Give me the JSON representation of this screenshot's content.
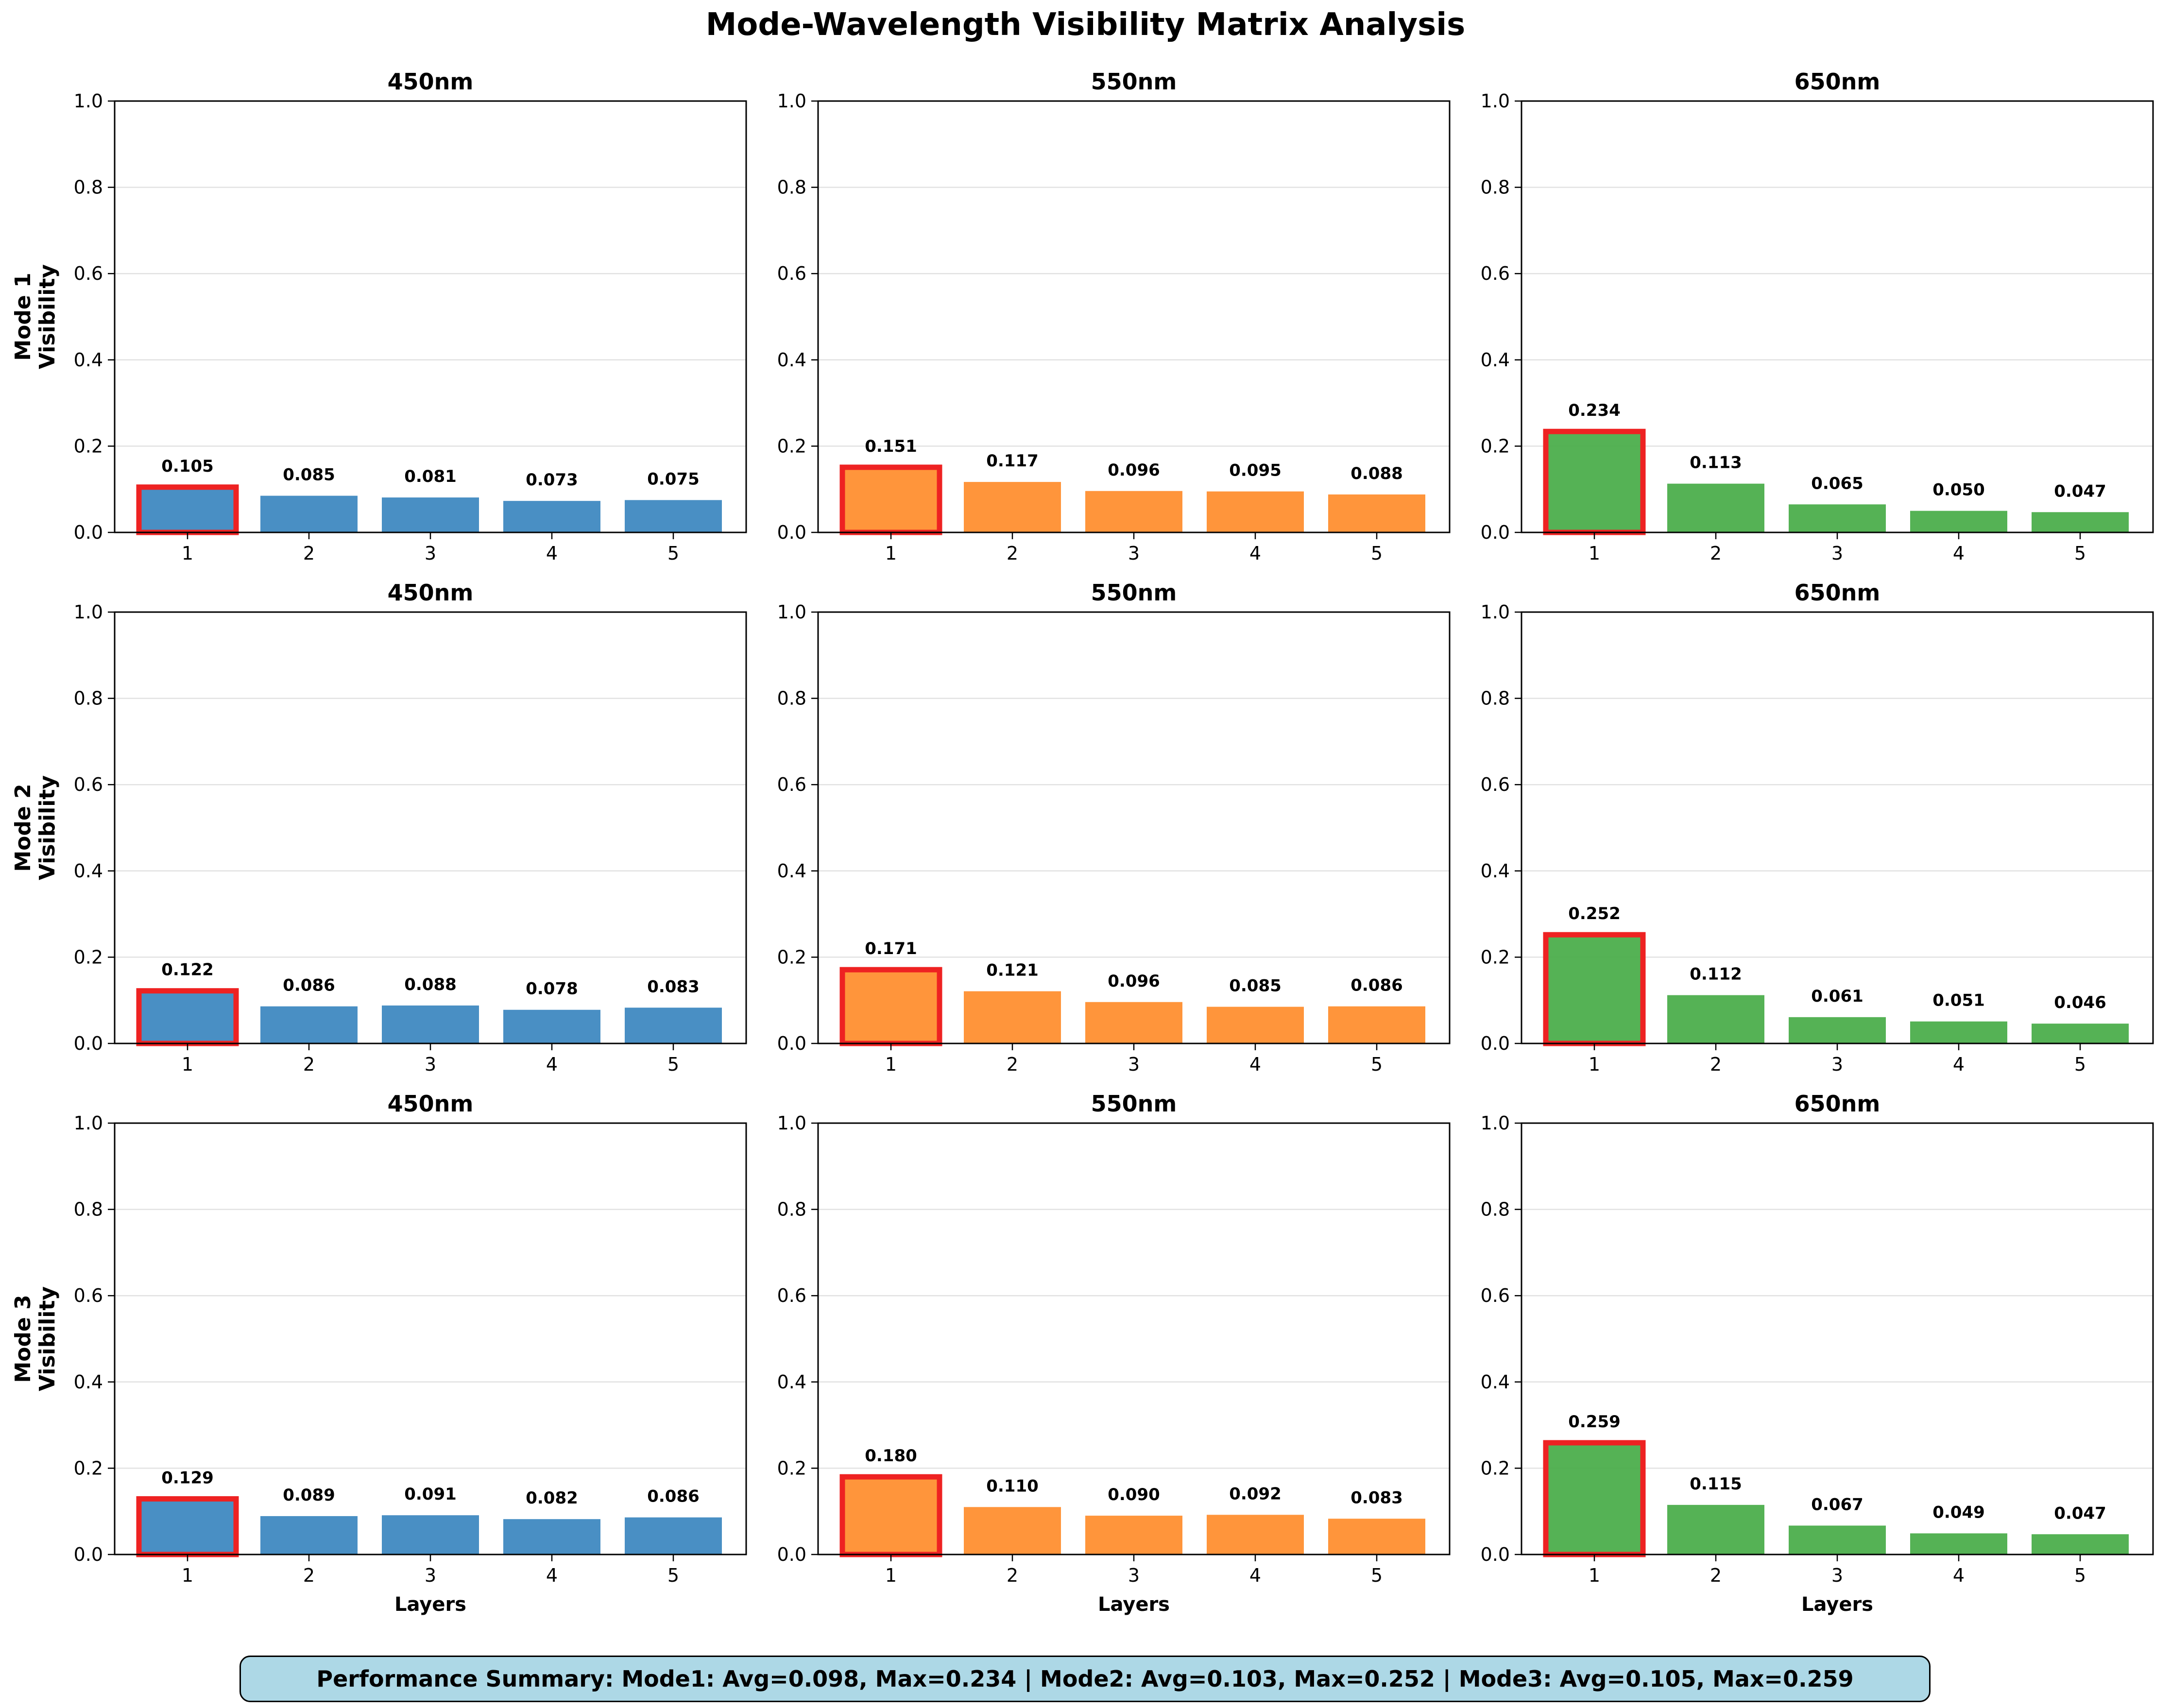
{
  "title": "Mode-Wavelength Visibility Matrix Analysis",
  "summary": "Performance Summary: Mode1: Avg=0.098, Max=0.234 | Mode2: Avg=0.103, Max=0.252 | Mode3: Avg=0.105, Max=0.259",
  "colors": {
    "450nm": "#3a86bf",
    "550nm": "#ff8c2a",
    "650nm": "#47ab47",
    "highlight": "#ee2222",
    "grid": "#e2e2e2"
  },
  "chart_data": {
    "type": "bar",
    "categories": [
      "1",
      "2",
      "3",
      "4",
      "5"
    ],
    "xlabel": "Layers",
    "ylim": [
      0,
      1.0
    ],
    "yticks": [
      "0.0",
      "0.2",
      "0.4",
      "0.6",
      "0.8",
      "1.0"
    ],
    "grid": "horizontal",
    "highlight": "max bar outlined in red",
    "rows": [
      {
        "ylabel_line1": "Mode 1",
        "ylabel_line2": "Visibility",
        "panels": [
          {
            "title": "450nm",
            "values": [
              0.105,
              0.085,
              0.081,
              0.073,
              0.075
            ],
            "labels": [
              "0.105",
              "0.085",
              "0.081",
              "0.073",
              "0.075"
            ]
          },
          {
            "title": "550nm",
            "values": [
              0.151,
              0.117,
              0.096,
              0.095,
              0.088
            ],
            "labels": [
              "0.151",
              "0.117",
              "0.096",
              "0.095",
              "0.088"
            ]
          },
          {
            "title": "650nm",
            "values": [
              0.234,
              0.113,
              0.065,
              0.05,
              0.047
            ],
            "labels": [
              "0.234",
              "0.113",
              "0.065",
              "0.050",
              "0.047"
            ]
          }
        ]
      },
      {
        "ylabel_line1": "Mode 2",
        "ylabel_line2": "Visibility",
        "panels": [
          {
            "title": "450nm",
            "values": [
              0.122,
              0.086,
              0.088,
              0.078,
              0.083
            ],
            "labels": [
              "0.122",
              "0.086",
              "0.088",
              "0.078",
              "0.083"
            ]
          },
          {
            "title": "550nm",
            "values": [
              0.171,
              0.121,
              0.096,
              0.085,
              0.086
            ],
            "labels": [
              "0.171",
              "0.121",
              "0.096",
              "0.085",
              "0.086"
            ]
          },
          {
            "title": "650nm",
            "values": [
              0.252,
              0.112,
              0.061,
              0.051,
              0.046
            ],
            "labels": [
              "0.252",
              "0.112",
              "0.061",
              "0.051",
              "0.046"
            ]
          }
        ]
      },
      {
        "ylabel_line1": "Mode 3",
        "ylabel_line2": "Visibility",
        "panels": [
          {
            "title": "450nm",
            "values": [
              0.129,
              0.089,
              0.091,
              0.082,
              0.086
            ],
            "labels": [
              "0.129",
              "0.089",
              "0.091",
              "0.082",
              "0.086"
            ]
          },
          {
            "title": "550nm",
            "values": [
              0.18,
              0.11,
              0.09,
              0.092,
              0.083
            ],
            "labels": [
              "0.180",
              "0.110",
              "0.090",
              "0.092",
              "0.083"
            ]
          },
          {
            "title": "650nm",
            "values": [
              0.259,
              0.115,
              0.067,
              0.049,
              0.047
            ],
            "labels": [
              "0.259",
              "0.115",
              "0.067",
              "0.049",
              "0.047"
            ]
          }
        ]
      }
    ]
  }
}
